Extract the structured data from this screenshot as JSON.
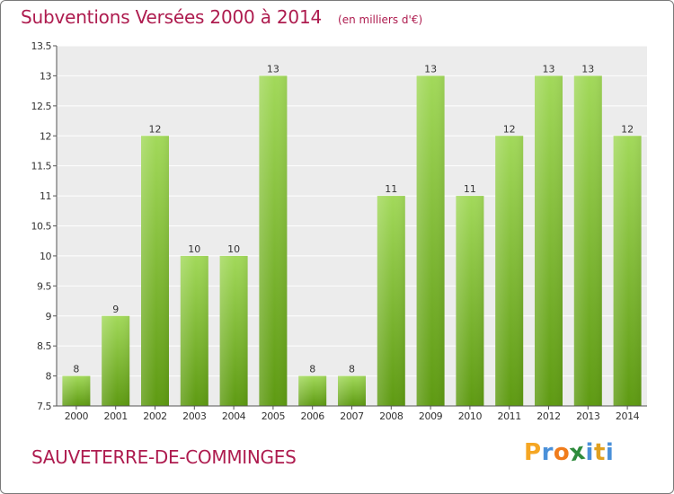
{
  "header": {
    "title": "Subventions Versées 2000 à 2014",
    "subtitle": "(en milliers d'€)"
  },
  "commune": "SAUVETERRE-DE-COMMINGES",
  "logo": {
    "letters": [
      "P",
      "r",
      "o",
      "x",
      "i",
      "t",
      "i"
    ],
    "colors": [
      "#f5a623",
      "#4a90d9",
      "#f07c1c",
      "#2e8b3c",
      "#4a90d9",
      "#e0a020",
      "#4a90d9"
    ]
  },
  "colors": {
    "bar_top": "#a2d95a",
    "bar_bottom": "#5e9a12",
    "plot_bg": "#ececec",
    "grid": "#ffffff",
    "title": "#ae1c4f"
  },
  "chart_data": {
    "type": "bar",
    "title": "Subventions Versées 2000 à 2014",
    "subtitle": "(en milliers d'€)",
    "categories": [
      "2000",
      "2001",
      "2002",
      "2003",
      "2004",
      "2005",
      "2006",
      "2007",
      "2008",
      "2009",
      "2010",
      "2011",
      "2012",
      "2013",
      "2014"
    ],
    "values": [
      8,
      9,
      12,
      10,
      10,
      13,
      8,
      8,
      11,
      13,
      11,
      12,
      13,
      13,
      12
    ],
    "ylim": [
      7.5,
      13.5
    ],
    "yticks": [
      "7.5",
      "8",
      "8.5",
      "9",
      "9.5",
      "10",
      "10.5",
      "11",
      "11.5",
      "12",
      "12.5",
      "13",
      "13.5"
    ],
    "grid": true,
    "xlabel": "",
    "ylabel": ""
  }
}
